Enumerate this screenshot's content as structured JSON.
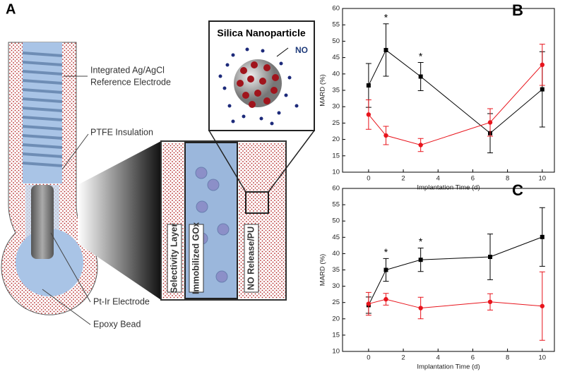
{
  "diagram": {
    "panel_label": "A",
    "nanoparticle_title": "Silica Nanoparticle",
    "no_label": "NO",
    "reference_line1": "Integrated Ag/AgCl",
    "reference_line2": "Reference Electrode",
    "ptfe": "PTFE Insulation",
    "electrode": "Pt-Ir Electrode",
    "bead": "Epoxy Bead",
    "layers": [
      "Selectivity Layer",
      "Immobilized GOx",
      "NO Release/PU"
    ]
  },
  "chart_data": [
    {
      "type": "line",
      "panel_label": "B",
      "xlabel": "Implantation Time (d)",
      "ylabel": "MARD (%)",
      "x": [
        0,
        1,
        3,
        7,
        10
      ],
      "xlim": [
        -1.5,
        10.7
      ],
      "xticks": [
        0,
        2,
        4,
        6,
        8,
        10
      ],
      "ylim": [
        10,
        60
      ],
      "yticks": [
        10,
        15,
        20,
        25,
        30,
        35,
        40,
        45,
        50,
        55,
        60
      ],
      "series": [
        {
          "color": "#000000",
          "marker": "square",
          "values": [
            36.5,
            47.3,
            39.2,
            21.9,
            35.3
          ],
          "errors": [
            6.7,
            8,
            4.3,
            6,
            11.5
          ]
        },
        {
          "color": "#e8141c",
          "marker": "circle",
          "values": [
            27.6,
            21.2,
            18.3,
            25.2,
            42.8
          ],
          "errors": [
            4.5,
            2.8,
            2,
            4.2,
            6.3
          ]
        }
      ],
      "annotations": [
        {
          "text": "*",
          "x": 1
        },
        {
          "text": "*",
          "x": 3
        }
      ]
    },
    {
      "type": "line",
      "panel_label": "C",
      "xlabel": "Implantation Time (d)",
      "ylabel": "MARD (%)",
      "x": [
        0,
        1,
        3,
        7,
        10
      ],
      "xlim": [
        -1.5,
        10.7
      ],
      "xticks": [
        0,
        2,
        4,
        6,
        8,
        10
      ],
      "ylim": [
        10,
        60
      ],
      "yticks": [
        10,
        15,
        20,
        25,
        30,
        35,
        40,
        45,
        50,
        55,
        60
      ],
      "series": [
        {
          "color": "#000000",
          "marker": "square",
          "values": [
            24.2,
            35,
            38.1,
            39,
            45.1
          ],
          "errors": [
            2.5,
            3.5,
            3.6,
            7,
            9
          ]
        },
        {
          "color": "#e8141c",
          "marker": "circle",
          "values": [
            24.6,
            26,
            23.3,
            25.2,
            23.9
          ],
          "errors": [
            3.5,
            1.8,
            3.3,
            2.5,
            10.5
          ]
        }
      ],
      "annotations": [
        {
          "text": "*",
          "x": 1
        },
        {
          "text": "*",
          "x": 3
        }
      ]
    }
  ]
}
